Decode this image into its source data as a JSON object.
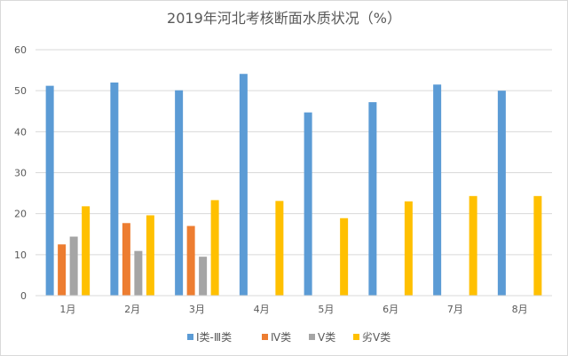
{
  "chart_data": {
    "type": "bar",
    "title": "2019年河北考核断面水质状况（%）",
    "categories": [
      "1月",
      "2月",
      "3月",
      "4月",
      "5月",
      "6月",
      "7月",
      "8月"
    ],
    "series": [
      {
        "name": "Ⅰ类-Ⅲ类",
        "color": "#5b9bd5",
        "values": [
          51.2,
          52.0,
          50.1,
          54.1,
          44.7,
          47.2,
          51.5,
          50.0
        ]
      },
      {
        "name": "Ⅳ类",
        "color": "#ed7d31",
        "values": [
          12.5,
          17.7,
          17.0,
          0,
          0,
          0,
          0,
          0
        ]
      },
      {
        "name": "Ⅴ类",
        "color": "#a5a5a5",
        "values": [
          14.4,
          10.9,
          9.5,
          0,
          0,
          0,
          0,
          0
        ]
      },
      {
        "name": "劣Ⅴ类",
        "color": "#ffc000",
        "values": [
          21.8,
          19.6,
          23.3,
          23.1,
          18.9,
          23.0,
          24.3,
          24.3
        ]
      }
    ],
    "ylim": [
      0,
      60
    ],
    "yticks": [
      "0",
      "10",
      "20",
      "30",
      "40",
      "50",
      "60"
    ],
    "grid": true,
    "legend": "bottom"
  }
}
